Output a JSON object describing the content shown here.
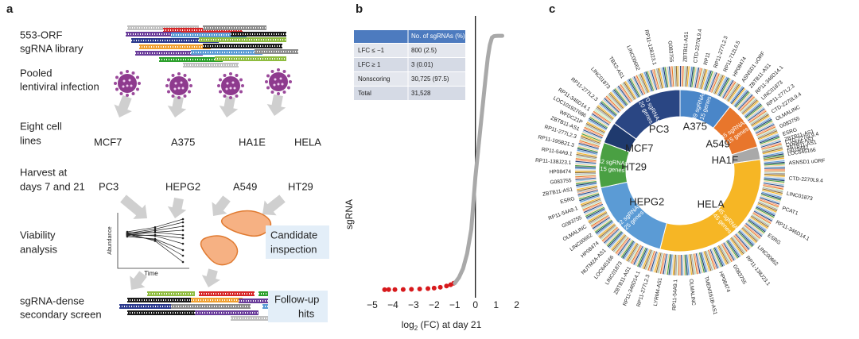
{
  "panel_a": {
    "label": "a",
    "steps": [
      {
        "lines": [
          "553-ORF",
          "sgRNA library"
        ]
      },
      {
        "lines": [
          "Pooled",
          "lentiviral infection"
        ]
      },
      {
        "lines": [
          "Eight cell",
          "lines"
        ]
      },
      {
        "lines": [
          "Harvest at",
          "days 7 and 21"
        ]
      },
      {
        "lines": [
          "Viability",
          "analysis"
        ]
      },
      {
        "lines": [
          "sgRNA-dense",
          "secondary screen"
        ]
      }
    ],
    "cell_lines_day7": [
      "MCF7",
      "A375",
      "HA1E",
      "HELA"
    ],
    "cell_lines_day21": [
      "PC3",
      "HEPG2",
      "A549",
      "HT29"
    ],
    "plot_ylabel": "Abundance",
    "plot_xlabel": "Time",
    "candidate": [
      "Candidate",
      "inspection"
    ],
    "followup": [
      "Follow-up",
      "hits"
    ]
  },
  "chart_data": [
    {
      "type": "line",
      "panel_label": "b",
      "ylabel": "sgRNA",
      "xlabel_parts": [
        "log",
        "2",
        " (FC) at day 21"
      ],
      "xlim": [
        -5.5,
        2.4
      ],
      "xticks": [
        {
          "value": -5,
          "label": "−5"
        },
        {
          "value": -4,
          "label": "−4"
        },
        {
          "value": -3,
          "label": "−3"
        },
        {
          "value": -2,
          "label": "−2"
        },
        {
          "value": -1,
          "label": "−1"
        },
        0,
        1,
        2
      ],
      "ylim": [
        -1000,
        34000
      ],
      "zero_line": true,
      "series": [
        {
          "color": "#d7191c",
          "marker": "dot",
          "x": [
            -4.4,
            -4.2,
            -3.9,
            -3.5,
            -3.1,
            -2.7,
            -2.3,
            -2.0,
            -1.7,
            -1.4,
            -1.2,
            -1.05
          ],
          "values": [
            1,
            5,
            12,
            25,
            45,
            80,
            130,
            200,
            300,
            450,
            620,
            800
          ]
        },
        {
          "color": "#a9a9a9",
          "marker": "line",
          "x": [
            -1,
            -0.8,
            -0.6,
            -0.4,
            -0.2,
            0,
            0.1,
            0.2,
            0.3,
            0.4,
            0.5,
            0.6,
            0.7,
            0.8,
            0.9,
            1.0,
            1.1,
            1.2,
            1.3
          ],
          "values": [
            800,
            1500,
            2600,
            4500,
            7500,
            14000,
            16500,
            19000,
            21500,
            24000,
            26500,
            28800,
            30400,
            31300,
            31480,
            31510,
            31520,
            31525,
            31528
          ]
        }
      ],
      "table": {
        "header": "No. of sgRNAs (%)",
        "rows": [
          [
            "LFC ≤ −1",
            "800 (2.5)"
          ],
          [
            "LFC ≥ 1",
            "3 (0.01)"
          ],
          [
            "Nonscoring",
            "30,725 (97.5)"
          ],
          [
            "Total",
            "31,528"
          ]
        ]
      }
    },
    {
      "type": "donut",
      "panel_label": "c",
      "categories": [
        "A375",
        "A549",
        "HA1E",
        "HELA",
        "HEPG2",
        "HT29",
        "MCF7",
        "PC3"
      ],
      "values": [
        49,
        45,
        12,
        145,
        82,
        42,
        20,
        70
      ],
      "value_labels": [
        "49 sgRNAs",
        "45 sgRNAs",
        null,
        "145 sgRNAs",
        "82 sgRNAs",
        "42 sgRNAs",
        null,
        "70 sgRNAs"
      ],
      "genes": [
        15,
        15,
        null,
        45,
        25,
        15,
        null,
        20
      ],
      "genes_labels": [
        "15 genes",
        "15 genes",
        null,
        "45 genes",
        "25 genes",
        "15 genes",
        null,
        "20 genes"
      ],
      "colors": [
        "#4a86c8",
        "#e8762c",
        "#a9a9a9",
        "#f6b625",
        "#5b9bd5",
        "#4aa043",
        "#1f3a6e",
        "#2a4683"
      ],
      "outer_ring_colors": [
        "#2a4683",
        "#e8762c",
        "#a9a9a9",
        "#f6b625",
        "#5b9bd5",
        "#4aa043",
        "#9ecae1",
        "#f4a582",
        "#c7e9c0",
        "#8c6d31",
        "#d6d6d6",
        "#1f3a6e",
        "#fdd49e"
      ],
      "gene_labels": [
        [
          "ZBTB11-AS1",
          "CTD-2270L9.4",
          "RP11",
          "RP11-277L2.3",
          "RP11-712L6.5",
          "HP08474",
          "ASNSD1 uORF"
        ],
        [
          "ZBTB11-AS1",
          "RP11-346D14.1",
          "LINC01873",
          "RP11-277L2.3",
          "CTD-2270L9.4",
          "OLMALINC",
          "G083755",
          "ESRG"
        ],
        [
          "ZBTB11-AS1",
          "CTD-2270L9.4",
          "LYRM4-AS1",
          "ZBTB11-AS1",
          "G029442",
          "LOC645166"
        ],
        [
          "ASNSD1 uORF",
          "CTD-2270L9.4",
          "LINC01873",
          "PCAT1",
          "RP11-346D14.1",
          "ESRG",
          "LINC00662",
          "RP11-138J23.1",
          "G083755",
          "HP08474",
          "TMEM161B-AS1",
          "OLMALINC",
          "RP11-54A9.1",
          "LYRM4-AS1"
        ],
        [
          "RP11-277L2.3",
          "RP11-346D14.1",
          "ZBTB11-AS1",
          "LINC01873",
          "LOC645166",
          "NUTM2A-AS1",
          "HP08474",
          "LINC00662",
          "OLMALINC",
          "G083755",
          "RP11-54A9.1",
          "ESRG"
        ],
        [
          "ZBTB11-AS1",
          "G083755",
          "HP08474",
          "RP11-138J23.1",
          "RP11-54A9.1",
          "RP11-195B21.3",
          "RP11-277L2.3"
        ],
        [
          "ZBTB11-AS1",
          "WFDC21P",
          "LOC101927686",
          "RP11-346D14.1"
        ],
        [
          "RP11-277L2.3",
          "LINC01873",
          "TBX2-AS1",
          "LINC00662",
          "RP11-138J23.1",
          "G083755"
        ]
      ]
    }
  ]
}
